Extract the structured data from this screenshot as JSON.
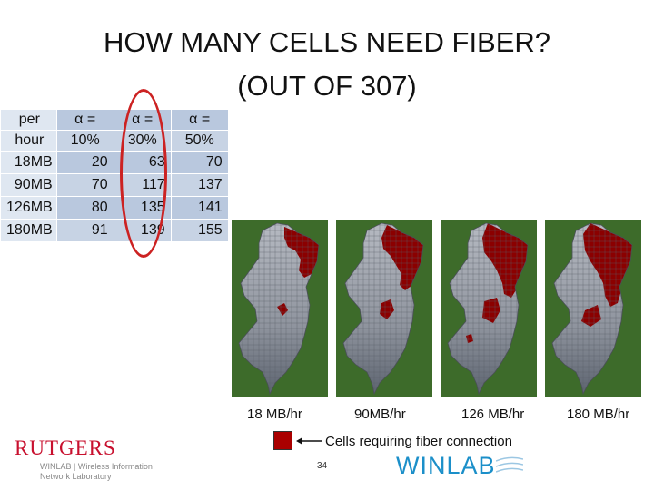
{
  "title": {
    "line1": "HOW MANY CELLS NEED FIBER?",
    "line2": "(OUT OF 307)"
  },
  "table": {
    "header_row1": [
      "per",
      "α =",
      "α =",
      "α ="
    ],
    "header_row2": [
      "hour",
      "10%",
      "30%",
      "50%"
    ],
    "rows": [
      {
        "label": "18MB",
        "values": [
          "20",
          "63",
          "70"
        ]
      },
      {
        "label": "90MB",
        "values": [
          "70",
          "117",
          "137"
        ]
      },
      {
        "label": "126MB",
        "values": [
          "80",
          "135",
          "141"
        ]
      },
      {
        "label": "180MB",
        "values": [
          "91",
          "139",
          "155"
        ]
      }
    ]
  },
  "maps": [
    {
      "caption": "18 MB/hr",
      "fiber_fraction": 0.21
    },
    {
      "caption": "90MB/hr",
      "fiber_fraction": 0.38
    },
    {
      "caption": "126 MB/hr",
      "fiber_fraction": 0.44
    },
    {
      "caption": "180 MB/hr",
      "fiber_fraction": 0.45
    }
  ],
  "legend": {
    "label": "Cells requiring fiber connection",
    "color": "#aa0000"
  },
  "colors": {
    "background_green": "#3d6b2a",
    "state_gray": "#9ea3ad",
    "fiber_red": "#8b0000",
    "highlight_ellipse": "#cc2222"
  },
  "footer": {
    "rutgers": "RUTGERS",
    "winlab_sub_line1": "WINLAB | Wireless Information",
    "winlab_sub_line2": "Network Laboratory",
    "page_number": "34",
    "winlab": "WINLAB"
  }
}
